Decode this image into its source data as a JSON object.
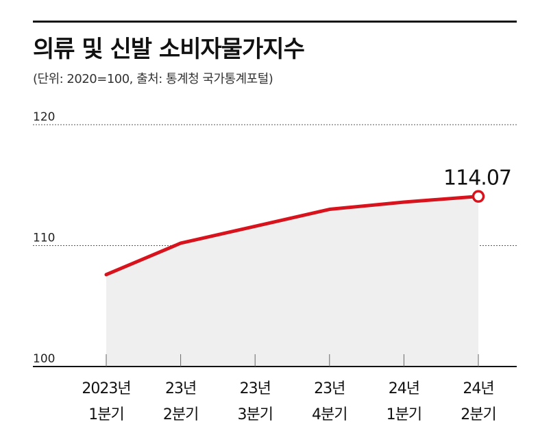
{
  "header": {
    "title": "의류 및 신발 소비자물가지수",
    "subtitle": "(단위: 2020=100, 출처: 통계청 국가통계포털)"
  },
  "colors": {
    "line": "#d7141e",
    "area": "#efefef",
    "axis": "#111111",
    "grid": "#555555"
  },
  "chart_data": {
    "type": "line",
    "title": "의류 및 신발 소비자물가지수",
    "subtitle": "(단위: 2020=100, 출처: 통계청 국가통계포털)",
    "categories": [
      [
        "2023년",
        "1분기"
      ],
      [
        "23년",
        "2분기"
      ],
      [
        "23년",
        "3분기"
      ],
      [
        "23년",
        "4분기"
      ],
      [
        "24년",
        "1분기"
      ],
      [
        "24년",
        "2분기"
      ]
    ],
    "values": [
      107.6,
      110.2,
      111.6,
      113.0,
      113.6,
      114.07
    ],
    "ylim": [
      100,
      120
    ],
    "yticks": [
      100,
      110,
      120
    ],
    "grid": true,
    "last_label": "114.07"
  }
}
